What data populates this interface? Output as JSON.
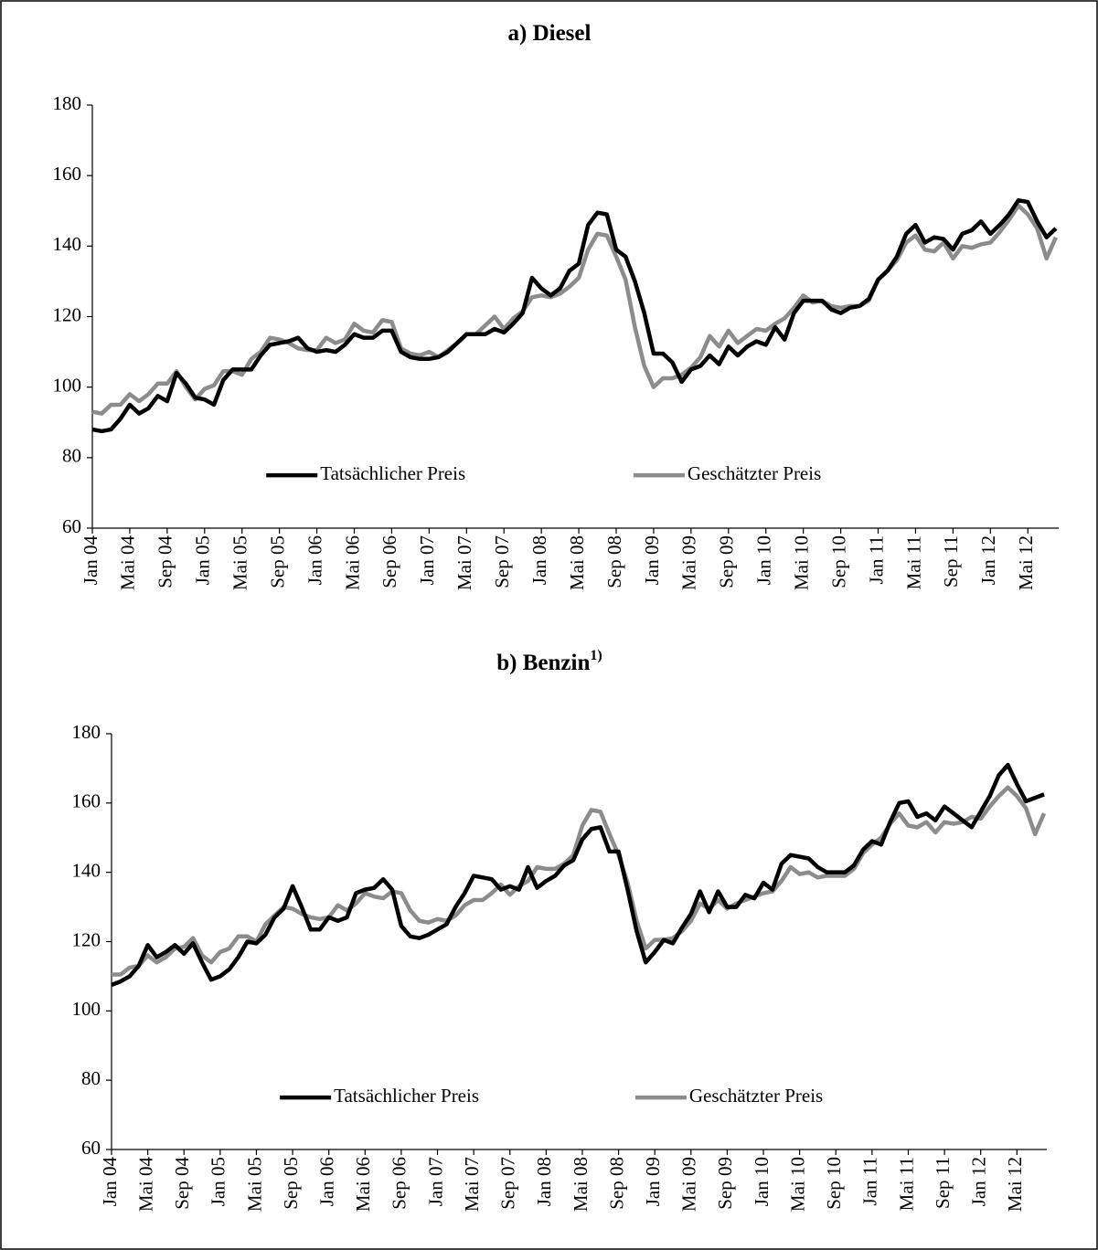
{
  "chart_data": [
    {
      "type": "line",
      "title": "a) Diesel",
      "categories": [
        "Jan 04",
        null,
        null,
        null,
        "Mai 04",
        null,
        null,
        null,
        "Sep 04",
        null,
        null,
        null,
        "Jan 05",
        null,
        null,
        null,
        "Mai 05",
        null,
        null,
        null,
        "Sep 05",
        null,
        null,
        null,
        "Jan 06",
        null,
        null,
        null,
        "Mai 06",
        null,
        null,
        null,
        "Sep 06",
        null,
        null,
        null,
        "Jan 07",
        null,
        null,
        null,
        "Mai 07",
        null,
        null,
        null,
        "Sep 07",
        null,
        null,
        null,
        "Jan 08",
        null,
        null,
        null,
        "Mai 08",
        null,
        null,
        null,
        "Sep 08",
        null,
        null,
        null,
        "Jan 09",
        null,
        null,
        null,
        "Mai 09",
        null,
        null,
        null,
        "Sep 09",
        null,
        null,
        null,
        "Jan 10",
        null,
        null,
        null,
        "Mai 10",
        null,
        null,
        null,
        "Sep 10",
        null,
        null,
        null,
        "Jan 11",
        null,
        null,
        null,
        "Mai 11",
        null,
        null,
        null,
        "Sep 11",
        null,
        null,
        null,
        "Jan 12",
        null,
        null,
        null,
        "Mai 12",
        null,
        null,
        null
      ],
      "series": [
        {
          "name": "Tatsächlicher Preis",
          "color": "#000000",
          "values": [
            88,
            87.5,
            88,
            91,
            95,
            92.5,
            94,
            97.5,
            96,
            104,
            101,
            97,
            96.5,
            95,
            102,
            105,
            105,
            105,
            109,
            112,
            112.5,
            113,
            114,
            111,
            110,
            110.5,
            110,
            112,
            115,
            114,
            114,
            116,
            116,
            110,
            108.5,
            108,
            108,
            108.5,
            110,
            112.5,
            115,
            115,
            115,
            116.5,
            115.5,
            118,
            121,
            131,
            128,
            126,
            128,
            133,
            135,
            146,
            149.5,
            149,
            139,
            137,
            130,
            121,
            109.5,
            109.5,
            107,
            101.5,
            105,
            106,
            109,
            106.5,
            111.5,
            109,
            111.5,
            113,
            112,
            117,
            113.5,
            121,
            124.5,
            124.5,
            124.5,
            122,
            121,
            122.5,
            123,
            125,
            130.5,
            133,
            137,
            143.5,
            146,
            141,
            142.5,
            142,
            139,
            143.5,
            144.5,
            147,
            143.5,
            146,
            149,
            153,
            152.5,
            147,
            142.5,
            145
          ]
        },
        {
          "name": "Geschätzter Preis",
          "color": "#8c8c8c",
          "values": [
            93,
            92.5,
            95,
            95,
            98,
            96,
            98,
            101,
            101,
            104.5,
            100,
            96.5,
            99.5,
            100.5,
            104.5,
            104.5,
            103.5,
            108,
            110,
            114,
            113.5,
            112.5,
            111,
            110.5,
            110.5,
            114,
            112.5,
            113.5,
            118,
            116,
            115.5,
            119,
            118.5,
            111,
            109.5,
            109,
            110,
            108.5,
            110.5,
            112.5,
            115,
            115,
            117.5,
            120,
            116.5,
            119.5,
            121.5,
            125.5,
            126,
            125.5,
            126.5,
            128.5,
            131,
            139,
            143.5,
            143,
            137,
            130.5,
            117,
            106,
            100,
            102.5,
            102.5,
            103.5,
            105.5,
            108.5,
            114.5,
            111.5,
            116,
            112.5,
            114.5,
            116.5,
            116,
            118,
            119.5,
            122.5,
            126,
            124,
            124.5,
            123,
            122.5,
            123,
            123,
            124.5,
            130.5,
            133,
            136,
            141,
            143,
            139,
            138.5,
            141,
            136.5,
            140,
            139.5,
            140.5,
            141,
            144,
            147.5,
            151.5,
            149,
            145,
            136.5,
            142.5
          ]
        }
      ],
      "ylim": [
        60,
        180
      ],
      "yticks": [
        60,
        80,
        100,
        120,
        140,
        160,
        180
      ],
      "legend": "lower center"
    },
    {
      "type": "line",
      "title": "b) Benzin",
      "title_note": "1)",
      "categories": [
        "Jan 04",
        null,
        null,
        null,
        "Mai 04",
        null,
        null,
        null,
        "Sep 04",
        null,
        null,
        null,
        "Jan 05",
        null,
        null,
        null,
        "Mai 05",
        null,
        null,
        null,
        "Sep 05",
        null,
        null,
        null,
        "Jan 06",
        null,
        null,
        null,
        "Mai 06",
        null,
        null,
        null,
        "Sep 06",
        null,
        null,
        null,
        "Jan 07",
        null,
        null,
        null,
        "Mai 07",
        null,
        null,
        null,
        "Sep 07",
        null,
        null,
        null,
        "Jan 08",
        null,
        null,
        null,
        "Mai 08",
        null,
        null,
        null,
        "Sep 08",
        null,
        null,
        null,
        "Jan 09",
        null,
        null,
        null,
        "Mai 09",
        null,
        null,
        null,
        "Sep 09",
        null,
        null,
        null,
        "Jan 10",
        null,
        null,
        null,
        "Mai 10",
        null,
        null,
        null,
        "Sep 10",
        null,
        null,
        null,
        "Jan 11",
        null,
        null,
        null,
        "Mai 11",
        null,
        null,
        null,
        "Sep 11",
        null,
        null,
        null,
        "Jan 12",
        null,
        null,
        null,
        "Mai 12",
        null,
        null,
        null
      ],
      "series": [
        {
          "name": "Tatsächlicher Preis",
          "color": "#000000",
          "values": [
            107.5,
            108.5,
            110,
            113,
            119,
            115.5,
            117,
            119,
            116.5,
            119.5,
            114,
            109,
            110,
            112,
            115.5,
            120,
            119.5,
            122,
            127,
            129.5,
            136,
            130,
            123.5,
            123.5,
            127,
            126,
            127,
            134,
            135,
            135.5,
            138,
            135,
            124.5,
            121.5,
            121,
            122,
            123.5,
            125,
            130,
            134,
            139,
            138.5,
            138,
            135,
            136,
            135,
            141.5,
            135.5,
            137.5,
            139,
            142,
            143.5,
            149.5,
            152.5,
            153,
            146,
            146,
            135,
            123,
            114,
            117,
            120.5,
            119.5,
            124,
            128,
            134.5,
            128.5,
            134.5,
            130,
            130,
            133.5,
            132.5,
            137,
            135,
            142.5,
            145,
            144.5,
            144,
            141.5,
            140,
            140,
            140,
            142,
            146.5,
            149,
            148,
            154.5,
            160,
            160.5,
            156,
            157,
            155,
            159,
            157,
            155,
            153,
            157.5,
            162,
            168,
            171,
            165.5,
            160.5,
            161.5,
            162.5
          ]
        },
        {
          "name": "Geschätzter Preis",
          "color": "#8c8c8c",
          "values": [
            110.5,
            110.5,
            112.5,
            113,
            116,
            114,
            115.5,
            118,
            118.5,
            121,
            116,
            114,
            117,
            118,
            121.5,
            121.5,
            120,
            125,
            127.5,
            130,
            129.5,
            128,
            127,
            126.5,
            127,
            130.5,
            129,
            131,
            134,
            133,
            132.5,
            134.5,
            134,
            129,
            126,
            125.5,
            126.5,
            126,
            127.5,
            130.5,
            132,
            132,
            134,
            136.5,
            133.5,
            136,
            137.5,
            141.5,
            141,
            141,
            142.5,
            145,
            153.5,
            158,
            157.5,
            151,
            145,
            137,
            126,
            118,
            120.5,
            120.5,
            121,
            123,
            126,
            131,
            129.5,
            132,
            129.5,
            131,
            132,
            133,
            134,
            134.5,
            137.5,
            141.5,
            139.5,
            140,
            138.5,
            139,
            139,
            139,
            141,
            145.5,
            148,
            150,
            154,
            157,
            153.5,
            153,
            154.5,
            151.5,
            154.5,
            154,
            154.5,
            156,
            155.5,
            159,
            162,
            164.5,
            162,
            158.5,
            151,
            157
          ]
        }
      ],
      "ylim": [
        60,
        180
      ],
      "yticks": [
        60,
        80,
        100,
        120,
        140,
        160,
        180
      ],
      "legend": "lower center"
    }
  ]
}
